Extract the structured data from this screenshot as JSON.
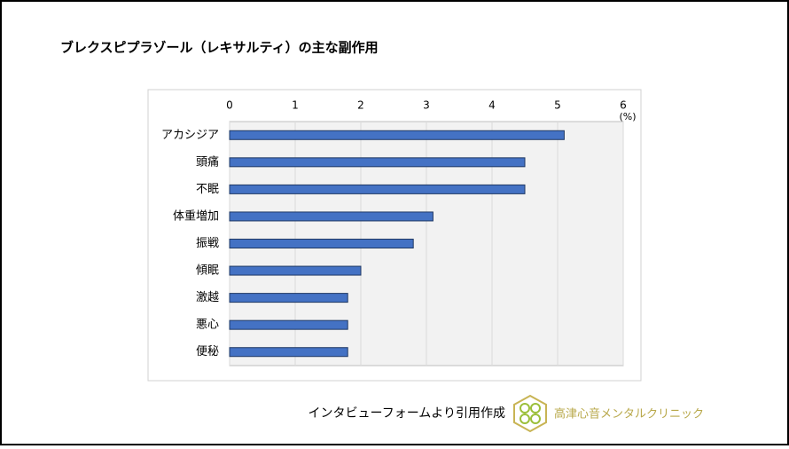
{
  "chart_data": {
    "type": "barh",
    "title": "ブレクスピプラゾール（レキサルティ）の主な副作用",
    "categories": [
      "アカシジア",
      "頭痛",
      "不眠",
      "体重増加",
      "振戦",
      "傾眠",
      "激越",
      "悪心",
      "便秘"
    ],
    "values": [
      5.1,
      4.5,
      4.5,
      3.1,
      2.8,
      2.0,
      1.8,
      1.8,
      1.8
    ],
    "color": "#4472c4",
    "xlim": [
      0,
      6
    ],
    "xticks": [
      0,
      1,
      2,
      3,
      4,
      5,
      6
    ],
    "x_unit": "(%)",
    "grid": true
  },
  "source": "インタビューフォームより引用作成",
  "logo": "高津心音メンタルクリニック"
}
